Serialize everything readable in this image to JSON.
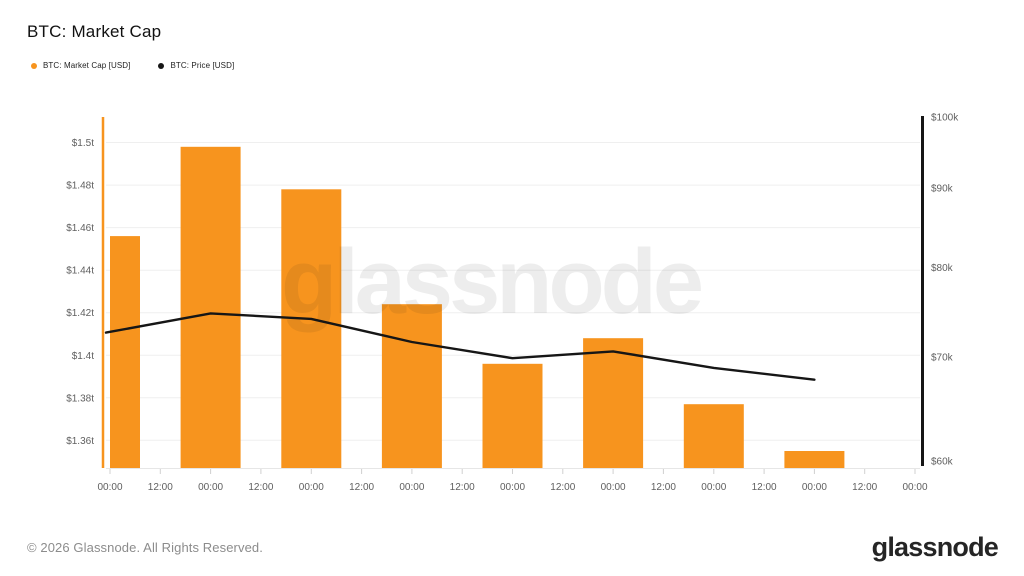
{
  "header": {
    "title": "BTC: Market Cap",
    "legend": [
      {
        "label": "BTC: Market Cap [USD]",
        "color": "#f7941e"
      },
      {
        "label": "BTC: Price [USD]",
        "color": "#161616"
      }
    ]
  },
  "watermark": "glassnode",
  "footer": {
    "copyright": "© 2026 Glassnode. All Rights Reserved.",
    "logo": "glassnode"
  },
  "chart_data": {
    "type": "bar",
    "title": "BTC: Market Cap",
    "legend_position": "top-left",
    "grid": "horizontal",
    "x_tick_labels": [
      "00:00",
      "12:00",
      "00:00",
      "12:00",
      "00:00",
      "12:00",
      "00:00",
      "12:00",
      "00:00",
      "12:00",
      "00:00",
      "12:00",
      "00:00",
      "12:00",
      "00:00",
      "12:00",
      "00:00"
    ],
    "series": [
      {
        "name": "BTC: Market Cap [USD]",
        "type": "bar",
        "axis": "left",
        "unit": "trillion USD",
        "color": "#f7941e",
        "tick_indices": [
          0,
          2,
          4,
          6,
          8,
          10,
          12,
          14
        ],
        "values": [
          1.456,
          1.498,
          1.478,
          1.424,
          1.396,
          1.408,
          1.377,
          1.355
        ]
      },
      {
        "name": "BTC: Price [USD]",
        "type": "line",
        "axis": "right",
        "unit": "USD",
        "color": "#161616",
        "tick_indices": [
          0,
          2,
          4,
          6,
          8,
          10,
          12,
          14
        ],
        "values": [
          72600,
          74700,
          74100,
          71600,
          69900,
          70600,
          68900,
          67700
        ]
      }
    ],
    "left_axis": {
      "tick_labels": [
        "$1.5t",
        "$1.48t",
        "$1.46t",
        "$1.44t",
        "$1.42t",
        "$1.4t",
        "$1.38t",
        "$1.36t"
      ],
      "tick_values": [
        1.5,
        1.48,
        1.46,
        1.44,
        1.42,
        1.4,
        1.38,
        1.36
      ],
      "range": [
        1.347,
        1.512
      ],
      "scale": "linear",
      "axis_color": "#f7941e"
    },
    "right_axis": {
      "tick_labels": [
        "$100k",
        "$90k",
        "$80k",
        "$70k",
        "$60k"
      ],
      "tick_values": [
        100000,
        90000,
        80000,
        70000,
        60000
      ],
      "range": [
        60000,
        100000
      ],
      "scale": "log",
      "axis_color": "#161616"
    }
  }
}
